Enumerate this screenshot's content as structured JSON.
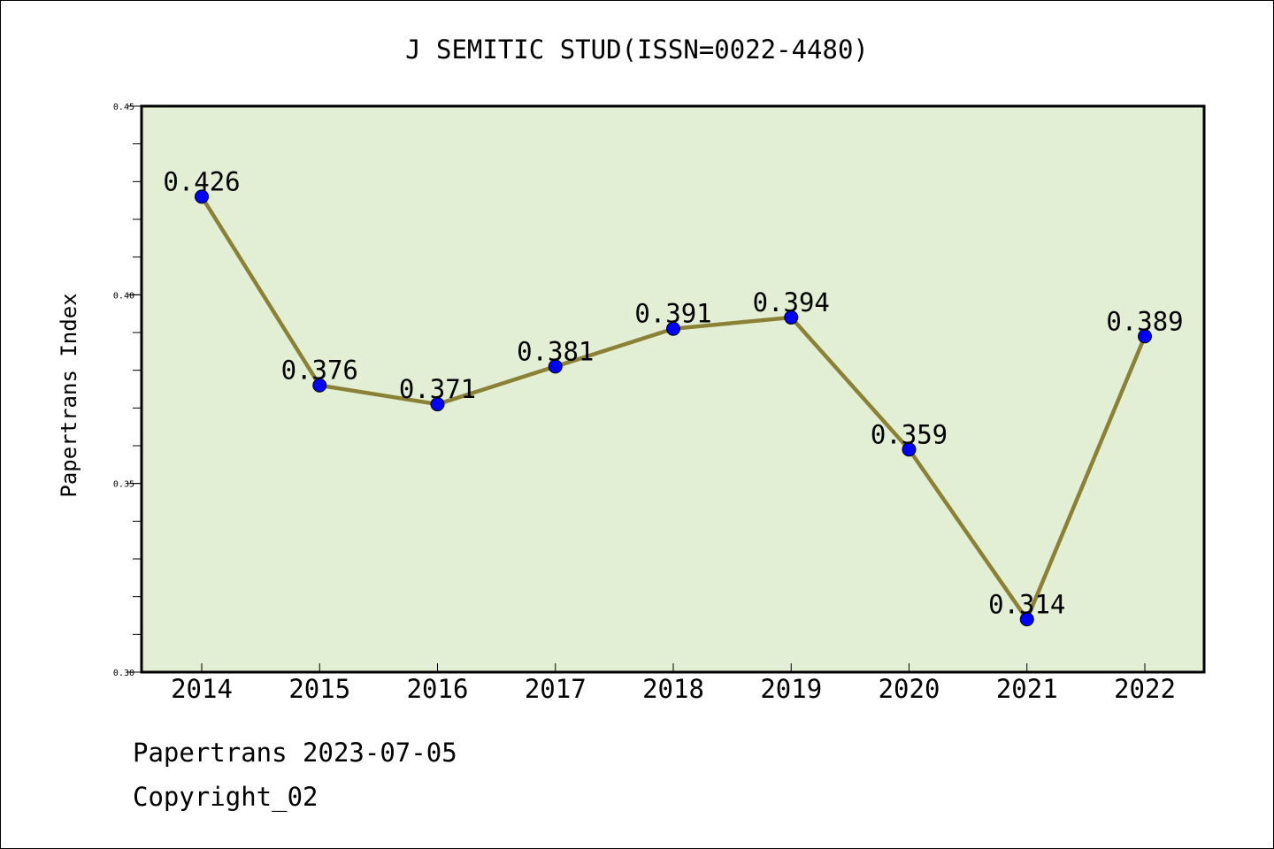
{
  "chart_data": {
    "type": "line",
    "title": "J SEMITIC STUD(ISSN=0022-4480)",
    "xlabel": "",
    "ylabel": "Papertrans Index",
    "categories": [
      "2014",
      "2015",
      "2016",
      "2017",
      "2018",
      "2019",
      "2020",
      "2021",
      "2022"
    ],
    "values": [
      0.426,
      0.376,
      0.371,
      0.381,
      0.391,
      0.394,
      0.359,
      0.314,
      0.389
    ],
    "data_labels": [
      "0.426",
      "0.376",
      "0.371",
      "0.381",
      "0.391",
      "0.394",
      "0.359",
      "0.314",
      "0.389"
    ],
    "ylim": [
      0.3,
      0.45
    ],
    "yticks": [
      0.3,
      0.35,
      0.4,
      0.45
    ],
    "ytick_labels": [
      "0.30",
      "0.35",
      "0.40",
      "0.45"
    ],
    "grid": false,
    "colors": {
      "plot_background": "#e2efd4",
      "line": "#8b8136",
      "marker": "#0000ff"
    }
  },
  "footer": {
    "line1": "Papertrans 2023-07-05",
    "line2": "Copyright_02"
  }
}
